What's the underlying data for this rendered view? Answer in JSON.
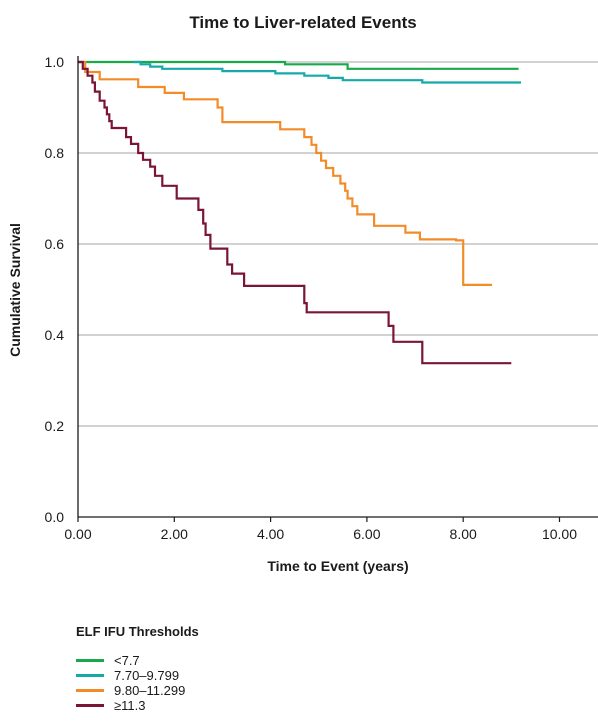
{
  "chart_data": {
    "type": "line",
    "subtype": "kaplan-meier step curves",
    "title": "Time to Liver-related Events",
    "xlabel": "Time to Event (years)",
    "ylabel": "Cumulative Survival",
    "xlim": [
      0,
      10.8
    ],
    "ylim": [
      0,
      1.0
    ],
    "x_ticks": [
      "0.00",
      "2.00",
      "4.00",
      "6.00",
      "8.00",
      "10.00"
    ],
    "x_tick_values": [
      0,
      2,
      4,
      6,
      8,
      10
    ],
    "y_ticks": [
      "0.0",
      "0.2",
      "0.4",
      "0.6",
      "0.8",
      "1.0"
    ],
    "y_tick_values": [
      0,
      0.2,
      0.4,
      0.6,
      0.8,
      1.0
    ],
    "grid": "horizontal",
    "legend_title": "ELF IFU Thresholds",
    "legend_position": "bottom-left",
    "series": [
      {
        "name": "<7.7",
        "color": "#1aa84a",
        "x": [
          0,
          4.3,
          4.3,
          5.6,
          5.6,
          9.15
        ],
        "y": [
          1.0,
          1.0,
          0.995,
          0.995,
          0.985,
          0.985
        ]
      },
      {
        "name": "7.70–9.799",
        "color": "#15a9a9",
        "x": [
          1.15,
          1.3,
          1.3,
          1.5,
          1.5,
          1.75,
          1.75,
          3.0,
          3.0,
          4.1,
          4.1,
          4.7,
          4.7,
          5.2,
          5.2,
          5.5,
          5.5,
          7.15,
          7.15,
          9.2
        ],
        "y": [
          1.0,
          1.0,
          0.995,
          0.995,
          0.99,
          0.99,
          0.985,
          0.985,
          0.98,
          0.98,
          0.975,
          0.975,
          0.97,
          0.97,
          0.965,
          0.965,
          0.96,
          0.96,
          0.955,
          0.955
        ]
      },
      {
        "name": "9.80–11.299",
        "color": "#f28c28",
        "x": [
          0,
          0.15,
          0.15,
          0.45,
          0.45,
          1.25,
          1.25,
          1.8,
          1.8,
          2.2,
          2.2,
          2.9,
          2.9,
          3.0,
          3.0,
          4.2,
          4.2,
          4.7,
          4.7,
          4.85,
          4.85,
          4.95,
          4.95,
          5.05,
          5.05,
          5.15,
          5.15,
          5.3,
          5.3,
          5.45,
          5.45,
          5.55,
          5.55,
          5.6,
          5.6,
          5.7,
          5.7,
          5.8,
          5.8,
          6.15,
          6.15,
          6.8,
          6.8,
          7.1,
          7.1,
          7.85,
          7.85,
          7.95,
          7.95,
          8.0,
          8.0,
          8.6
        ],
        "y": [
          1.0,
          1.0,
          0.978,
          0.978,
          0.962,
          0.962,
          0.945,
          0.945,
          0.932,
          0.932,
          0.918,
          0.918,
          0.9,
          0.9,
          0.868,
          0.868,
          0.852,
          0.852,
          0.835,
          0.835,
          0.818,
          0.818,
          0.8,
          0.8,
          0.783,
          0.783,
          0.767,
          0.767,
          0.75,
          0.75,
          0.733,
          0.733,
          0.717,
          0.717,
          0.7,
          0.7,
          0.683,
          0.683,
          0.665,
          0.665,
          0.64,
          0.64,
          0.625,
          0.625,
          0.61,
          0.61,
          0.608,
          0.608,
          0.608,
          0.608,
          0.51,
          0.51
        ]
      },
      {
        "name": "≥11.3",
        "color": "#7a1535",
        "x": [
          0,
          0.1,
          0.1,
          0.2,
          0.2,
          0.3,
          0.3,
          0.35,
          0.35,
          0.45,
          0.45,
          0.55,
          0.55,
          0.6,
          0.6,
          0.65,
          0.65,
          0.7,
          0.7,
          1.0,
          1.0,
          1.1,
          1.1,
          1.25,
          1.25,
          1.35,
          1.35,
          1.5,
          1.5,
          1.6,
          1.6,
          1.75,
          1.75,
          2.05,
          2.05,
          2.5,
          2.5,
          2.6,
          2.6,
          2.65,
          2.65,
          2.75,
          2.75,
          3.1,
          3.1,
          3.2,
          3.2,
          3.45,
          3.45,
          4.7,
          4.7,
          4.75,
          4.75,
          6.45,
          6.45,
          6.55,
          6.55,
          7.15,
          7.15,
          9.0
        ],
        "y": [
          1.0,
          1.0,
          0.985,
          0.985,
          0.97,
          0.97,
          0.955,
          0.955,
          0.935,
          0.935,
          0.915,
          0.915,
          0.9,
          0.9,
          0.885,
          0.885,
          0.87,
          0.87,
          0.855,
          0.855,
          0.835,
          0.835,
          0.82,
          0.82,
          0.8,
          0.8,
          0.785,
          0.785,
          0.77,
          0.77,
          0.75,
          0.75,
          0.728,
          0.728,
          0.7,
          0.7,
          0.675,
          0.675,
          0.645,
          0.645,
          0.62,
          0.62,
          0.59,
          0.59,
          0.555,
          0.555,
          0.535,
          0.535,
          0.508,
          0.508,
          0.47,
          0.47,
          0.45,
          0.45,
          0.42,
          0.42,
          0.385,
          0.385,
          0.338,
          0.338
        ]
      }
    ]
  }
}
